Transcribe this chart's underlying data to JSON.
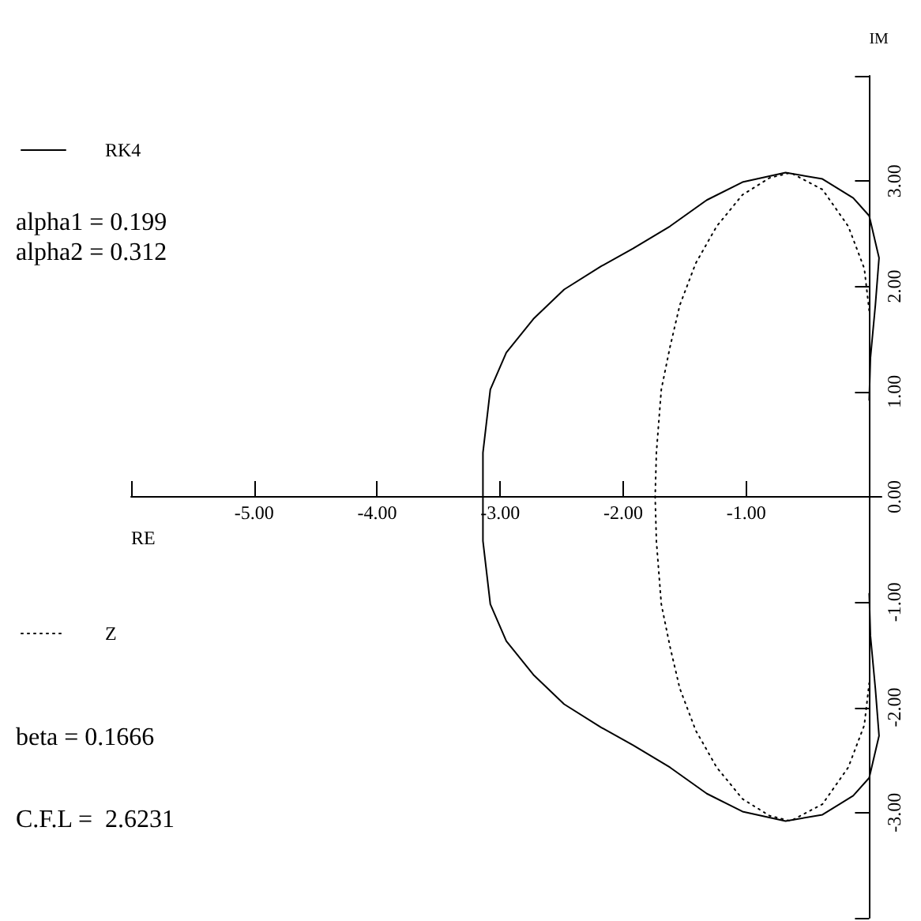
{
  "chart_data": {
    "type": "line",
    "xlabel": "RE",
    "ylabel": "IM",
    "xlim": [
      -6,
      0.1
    ],
    "ylim": [
      -4,
      4
    ],
    "xticks": [
      {
        "value": -6,
        "label": null
      },
      {
        "value": -5,
        "label": "-5.00"
      },
      {
        "value": -4,
        "label": "-4.00"
      },
      {
        "value": -3,
        "label": "-3.00"
      },
      {
        "value": -2,
        "label": "-2.00"
      },
      {
        "value": -1,
        "label": "-1.00"
      },
      {
        "value": 0,
        "label": null
      }
    ],
    "yticks": [
      {
        "value": -4,
        "label": null
      },
      {
        "value": -3,
        "label": "-3.00"
      },
      {
        "value": -2,
        "label": "-2.00"
      },
      {
        "value": -1,
        "label": "-1.00"
      },
      {
        "value": 0,
        "label": "0.00"
      },
      {
        "value": 1,
        "label": "1.00"
      },
      {
        "value": 2,
        "label": "2.00"
      },
      {
        "value": 3,
        "label": "3.00"
      },
      {
        "value": 4,
        "label": null
      }
    ],
    "grid": false,
    "legend": "left",
    "marker": "none",
    "series": [
      {
        "name": "RK4",
        "color": "#000000",
        "line_style": "solid",
        "x": [
          0,
          0.01,
          0.05,
          0.08,
          0,
          -0.13,
          -0.38,
          -0.68,
          -1.03,
          -1.32,
          -1.62,
          -1.92,
          -2.18,
          -2.48,
          -2.73,
          -2.95,
          -3.08,
          -3.14,
          -3.14,
          -3.14,
          -3.08,
          -2.95,
          -2.73,
          -2.48,
          -2.18,
          -1.92,
          -1.62,
          -1.32,
          -1.03,
          -0.68,
          -0.38,
          -0.13,
          0,
          0.08,
          0.05,
          0.01,
          0
        ],
        "values": [
          0.92,
          1.32,
          1.82,
          2.27,
          2.67,
          2.84,
          3.02,
          3.08,
          2.99,
          2.82,
          2.57,
          2.36,
          2.19,
          1.97,
          1.69,
          1.37,
          1.02,
          0.42,
          0,
          -0.42,
          -1.02,
          -1.37,
          -1.69,
          -1.97,
          -2.19,
          -2.36,
          -2.57,
          -2.82,
          -2.99,
          -3.08,
          -3.02,
          -2.84,
          -2.67,
          -2.27,
          -1.82,
          -1.32,
          -0.92
        ]
      },
      {
        "name": "Z",
        "color": "#000000",
        "line_style": "dotted",
        "x": [
          0,
          -0.04,
          -0.17,
          -0.38,
          -0.64,
          -0.81,
          -1.03,
          -1.24,
          -1.41,
          -1.54,
          -1.62,
          -1.69,
          -1.73,
          -1.74,
          -1.73,
          -1.69,
          -1.62,
          -1.54,
          -1.41,
          -1.24,
          -1.03,
          -0.81,
          -0.64,
          -0.38,
          -0.17,
          -0.04,
          0
        ],
        "values": [
          1.77,
          2.17,
          2.57,
          2.92,
          3.08,
          3.03,
          2.87,
          2.57,
          2.22,
          1.82,
          1.42,
          1.02,
          0.42,
          0,
          -0.42,
          -1.02,
          -1.42,
          -1.82,
          -2.22,
          -2.57,
          -2.87,
          -3.03,
          -3.08,
          -2.92,
          -2.57,
          -2.17,
          -1.77
        ]
      }
    ],
    "annotations": [
      "alpha1 = 0.199",
      "alpha2 = 0.312",
      "beta = 0.1666",
      "C.F.L =  2.6231"
    ]
  }
}
